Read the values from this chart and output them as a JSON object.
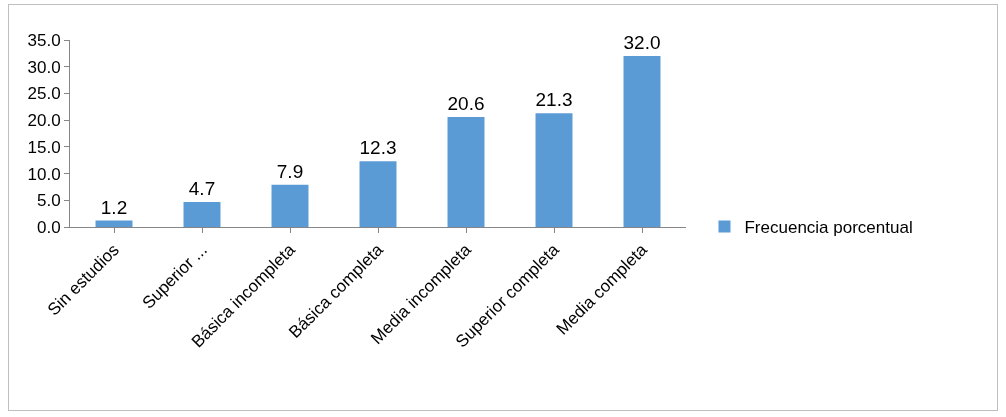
{
  "chart_data": {
    "type": "bar",
    "categories": [
      "Sin estudios",
      "Superior ...",
      "Básica incompleta",
      "Básica completa",
      "Media incompleta",
      "Superior completa",
      "Media completa"
    ],
    "series": [
      {
        "name": "Frecuencia porcentual",
        "color": "#5b9bd5",
        "values": [
          1.2,
          4.7,
          7.9,
          12.3,
          20.6,
          21.3,
          32.0
        ],
        "value_labels": [
          "1.2",
          "4.7",
          "7.9",
          "12.3",
          "20.6",
          "21.3",
          "32.0"
        ]
      }
    ],
    "ylim": [
      0,
      35
    ],
    "yticks": [
      {
        "value": 0,
        "label": "0.0"
      },
      {
        "value": 5,
        "label": "5.0"
      },
      {
        "value": 10,
        "label": "10.0"
      },
      {
        "value": 15,
        "label": "15.0"
      },
      {
        "value": 20,
        "label": "20.0"
      },
      {
        "value": 25,
        "label": "25.0"
      },
      {
        "value": 30,
        "label": "30.0"
      },
      {
        "value": 35,
        "label": "35.0"
      }
    ],
    "grid": false,
    "legend": "right"
  }
}
